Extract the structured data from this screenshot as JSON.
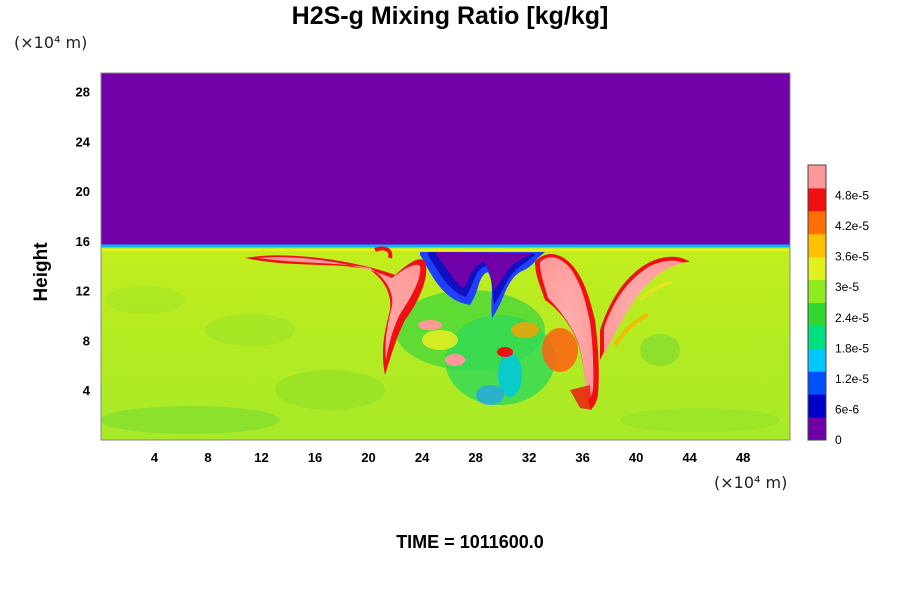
{
  "chart_data": {
    "type": "heatmap",
    "title": "H2S-g Mixing Ratio [kg/kg]",
    "xlabel": "",
    "ylabel": "Height",
    "x_unit": "(×10⁴ m)",
    "y_unit": "(×10⁴ m)",
    "xlim": [
      0,
      51.5
    ],
    "ylim": [
      0,
      29.5
    ],
    "x_ticks": [
      4,
      8,
      12,
      16,
      20,
      24,
      28,
      32,
      36,
      40,
      44,
      48
    ],
    "y_ticks": [
      4,
      8,
      12,
      16,
      20,
      24,
      28
    ],
    "x_tick_labels": [
      "4",
      "8",
      "12",
      "16",
      "20",
      "24",
      "28",
      "32",
      "36",
      "40",
      "44",
      "48"
    ],
    "y_tick_labels": [
      "4",
      "8",
      "12",
      "16",
      "20",
      "24",
      "28"
    ],
    "colorbar": {
      "range": [
        0,
        5.4e-05
      ],
      "tick_values": [
        0,
        6e-06,
        1.2e-05,
        1.8e-05,
        2.4e-05,
        3e-05,
        3.6e-05,
        4.2e-05,
        4.8e-05
      ],
      "tick_labels": [
        "0",
        "6e-6",
        "1.2e-5",
        "1.8e-5",
        "2.4e-5",
        "3e-5",
        "3.6e-5",
        "4.2e-5",
        "4.8e-5"
      ],
      "colors": [
        "#7000a8",
        "#0000c8",
        "#0050ff",
        "#00c8ff",
        "#00e080",
        "#30d830",
        "#90ea20",
        "#e0f020",
        "#ffc000",
        "#ff7000",
        "#f01010",
        "#ff9999"
      ]
    },
    "fields": {
      "upper_layer": {
        "y_range": [
          15.5,
          29.5
        ],
        "value": 0
      },
      "lower_layer": {
        "y_range": [
          0,
          15.5
        ],
        "value": 3.3e-05
      }
    },
    "features": [
      {
        "kind": "plume",
        "x_range": [
          11,
          23
        ],
        "y_range": [
          9,
          15.2
        ],
        "value": 5.2e-05
      },
      {
        "kind": "plume",
        "x_range": [
          32,
          44
        ],
        "y_range": [
          2.5,
          14.8
        ],
        "value": 5.2e-05
      },
      {
        "kind": "intrusion",
        "x_range": [
          24,
          33
        ],
        "y_range": [
          8,
          14.5
        ],
        "value": 0
      }
    ]
  },
  "footer": {
    "time_label": "TIME = 1011600.0"
  }
}
